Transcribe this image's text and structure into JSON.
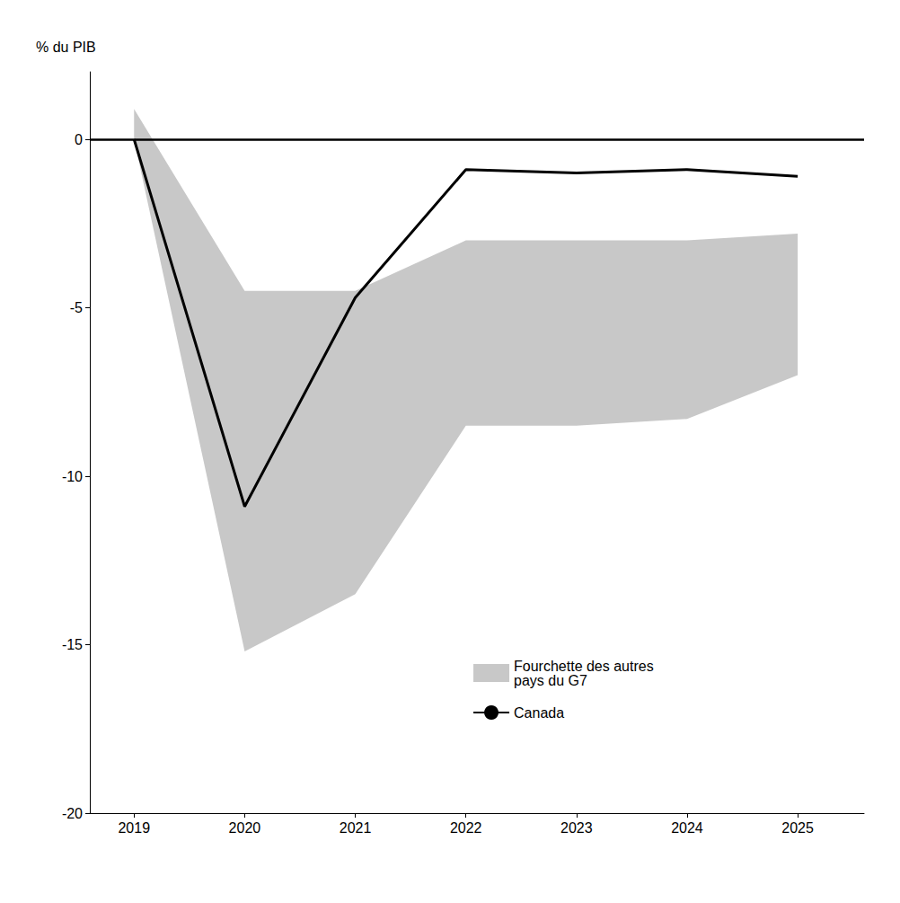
{
  "chart_data": {
    "type": "line",
    "x": [
      2019,
      2020,
      2021,
      2022,
      2023,
      2024,
      2025
    ],
    "xlim": [
      2018.6,
      2025.6
    ],
    "xticks": [
      2019,
      2020,
      2021,
      2022,
      2023,
      2024,
      2025
    ],
    "ylim": [
      -20,
      2
    ],
    "yticks": [
      0,
      -5,
      -10,
      -15,
      -20
    ],
    "ylabel": "% du PIB",
    "series": [
      {
        "name": "Fourchette des autres\npays du G7",
        "type": "band",
        "color": "#c8c8c8",
        "lower": [
          0.0,
          -15.2,
          -13.5,
          -8.5,
          -8.5,
          -8.3,
          -7.0
        ],
        "upper": [
          0.9,
          -4.5,
          -4.5,
          -3.0,
          -3.0,
          -3.0,
          -2.8
        ]
      },
      {
        "name": "Canada",
        "type": "line",
        "color": "#000000",
        "values": [
          0.0,
          -10.9,
          -4.7,
          -0.9,
          -1.0,
          -0.9,
          -1.1
        ]
      }
    ],
    "hline": 0,
    "legend": "bottom",
    "grid": false
  }
}
